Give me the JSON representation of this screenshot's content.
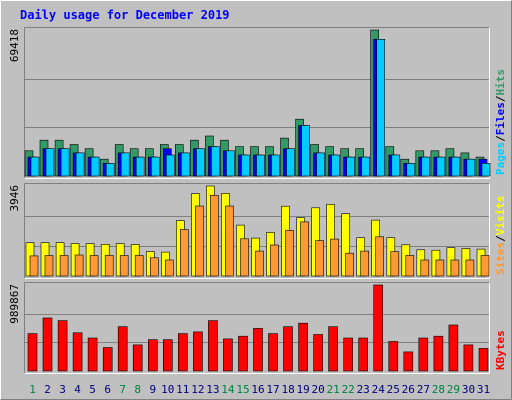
{
  "chart_data": [
    {
      "type": "bar",
      "title": "Daily usage for December 2019",
      "panel": "top",
      "y_max_label": "69418",
      "categories": [
        "1",
        "2",
        "3",
        "4",
        "5",
        "6",
        "7",
        "8",
        "9",
        "10",
        "11",
        "12",
        "13",
        "14",
        "15",
        "16",
        "17",
        "18",
        "19",
        "20",
        "21",
        "22",
        "23",
        "24",
        "25",
        "26",
        "27",
        "28",
        "29",
        "30",
        "31"
      ],
      "series": [
        {
          "name": "Hits",
          "color": "#339966",
          "values": [
            12000,
            17000,
            17000,
            15000,
            13000,
            8000,
            15000,
            13000,
            13000,
            15000,
            15000,
            17000,
            19000,
            17000,
            14000,
            14000,
            14000,
            18000,
            27000,
            15000,
            14000,
            13000,
            13000,
            69418,
            14000,
            8000,
            12000,
            12000,
            13000,
            11000,
            9000
          ]
        },
        {
          "name": "Files",
          "color": "#0000ff",
          "values": [
            9000,
            13000,
            13000,
            11000,
            9000,
            6000,
            11000,
            9000,
            9000,
            13000,
            11000,
            13000,
            14000,
            12000,
            10000,
            10000,
            10000,
            13000,
            24000,
            11000,
            10000,
            9000,
            9000,
            65000,
            10000,
            6000,
            9000,
            9000,
            9000,
            8000,
            8000
          ]
        },
        {
          "name": "Pages",
          "color": "#00ccff",
          "values": [
            9000,
            13000,
            13000,
            11000,
            9000,
            6000,
            11000,
            9000,
            9000,
            10000,
            11000,
            13000,
            14000,
            12000,
            10000,
            10000,
            10000,
            13000,
            24000,
            11000,
            10000,
            9000,
            9000,
            65000,
            10000,
            6000,
            9000,
            9000,
            9000,
            8000,
            6000
          ]
        }
      ]
    },
    {
      "type": "bar",
      "panel": "middle",
      "y_max_label": "3946",
      "categories": [
        "1",
        "2",
        "3",
        "4",
        "5",
        "6",
        "7",
        "8",
        "9",
        "10",
        "11",
        "12",
        "13",
        "14",
        "15",
        "16",
        "17",
        "18",
        "19",
        "20",
        "21",
        "22",
        "23",
        "24",
        "25",
        "26",
        "27",
        "28",
        "29",
        "30",
        "31"
      ],
      "series": [
        {
          "name": "Visits",
          "color": "#ffff00",
          "values": [
            1460,
            1460,
            1460,
            1420,
            1420,
            1390,
            1420,
            1380,
            1070,
            1050,
            2430,
            3610,
            3946,
            3620,
            2230,
            1660,
            1910,
            3060,
            2560,
            2990,
            3140,
            2730,
            1680,
            2450,
            1680,
            1370,
            1150,
            1130,
            1240,
            1200,
            1180
          ]
        },
        {
          "name": "Sites",
          "color": "#ff9933",
          "values": [
            880,
            900,
            900,
            920,
            900,
            900,
            900,
            900,
            800,
            700,
            2040,
            3070,
            3540,
            3070,
            1630,
            1090,
            1360,
            2000,
            2370,
            1550,
            1620,
            1000,
            1090,
            1720,
            1070,
            900,
            700,
            700,
            700,
            700,
            900
          ]
        }
      ]
    },
    {
      "type": "bar",
      "panel": "bottom",
      "y_max_label": "989867",
      "categories": [
        "1",
        "2",
        "3",
        "4",
        "5",
        "6",
        "7",
        "8",
        "9",
        "10",
        "11",
        "12",
        "13",
        "14",
        "15",
        "16",
        "17",
        "18",
        "19",
        "20",
        "21",
        "22",
        "23",
        "24",
        "25",
        "26",
        "27",
        "28",
        "29",
        "30",
        "31"
      ],
      "series": [
        {
          "name": "KBytes",
          "color": "#ff0000",
          "values": [
            430000,
            610000,
            580000,
            440000,
            380000,
            270000,
            510000,
            300000,
            360000,
            360000,
            430000,
            450000,
            580000,
            370000,
            400000,
            490000,
            430000,
            510000,
            550000,
            420000,
            510000,
            380000,
            380000,
            989867,
            340000,
            220000,
            380000,
            400000,
            530000,
            300000,
            260000
          ]
        }
      ]
    }
  ],
  "x_label_colors": {
    "weekday": "#000080",
    "weekend": "#008040",
    "weekend_days": [
      "1",
      "7",
      "8",
      "14",
      "15",
      "21",
      "22",
      "28",
      "29"
    ]
  },
  "legends": {
    "top": [
      {
        "text": "Pages",
        "color": "#00ccff"
      },
      {
        "text": "/",
        "color": "#000000"
      },
      {
        "text": "Files",
        "color": "#0000ff"
      },
      {
        "text": "/",
        "color": "#000000"
      },
      {
        "text": "Hits",
        "color": "#339966"
      }
    ],
    "middle": [
      {
        "text": "Sites",
        "color": "#ff9933"
      },
      {
        "text": "/",
        "color": "#000000"
      },
      {
        "text": "Visits",
        "color": "#ffff00"
      }
    ],
    "bottom": [
      {
        "text": "KBytes",
        "color": "#ff0000"
      }
    ]
  },
  "colors": {
    "background": "#c0c0c0",
    "plot_background": "#c0c0c0",
    "title": "#0000ff",
    "border_dark": "#808080",
    "border_light": "#ffffff",
    "grid": "#808080"
  }
}
